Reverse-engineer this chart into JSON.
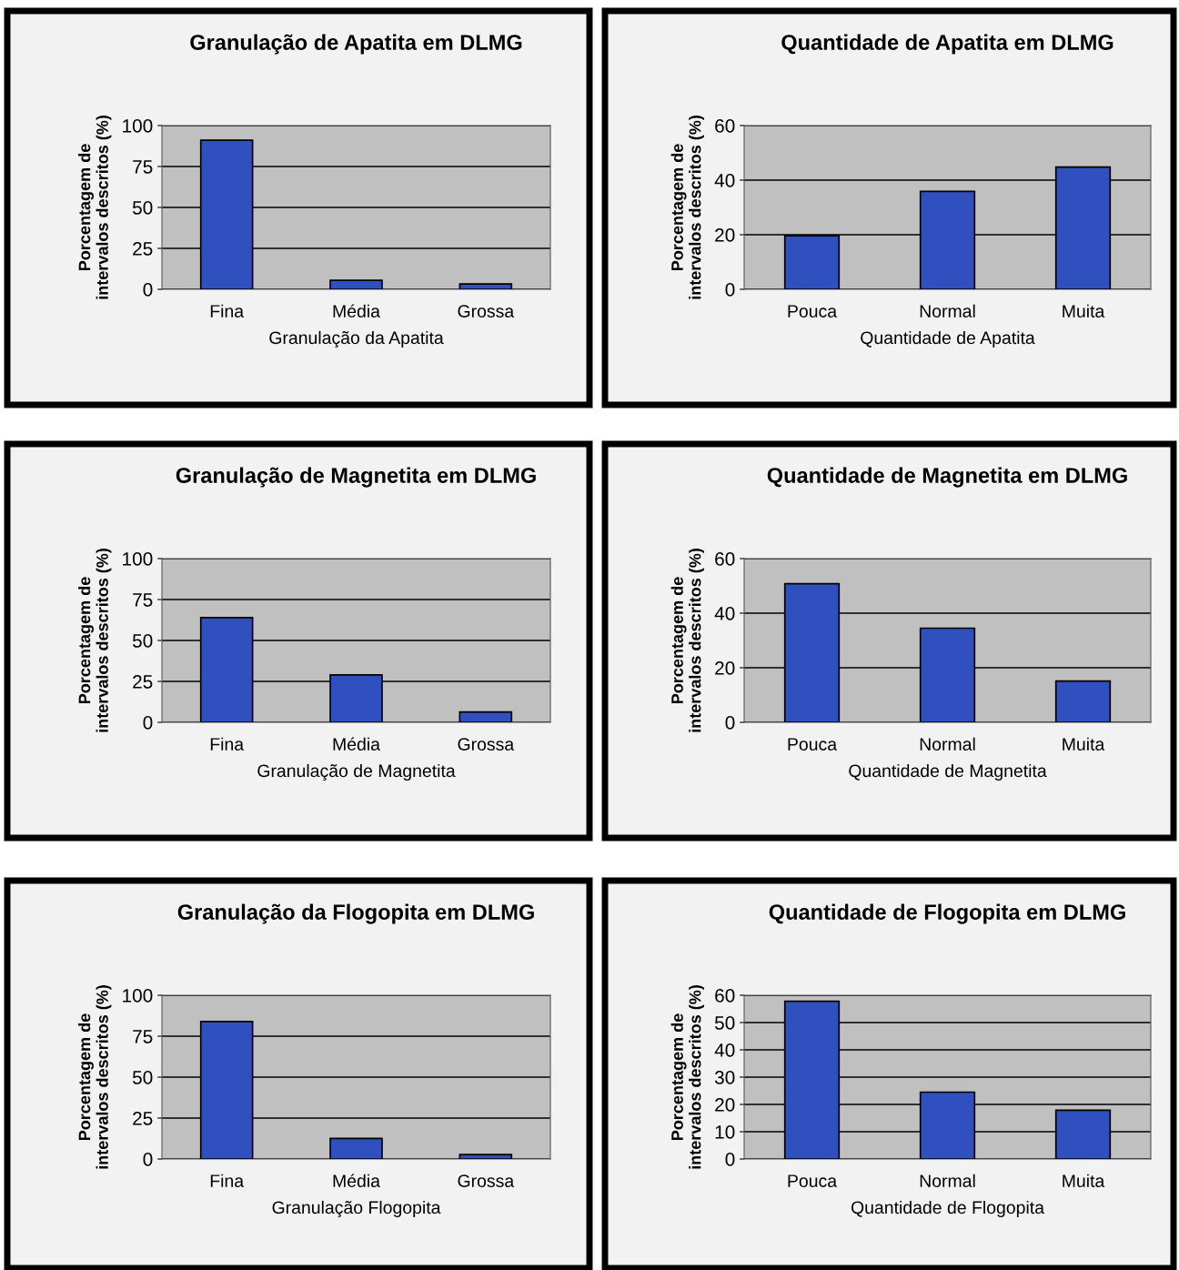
{
  "chart_data": [
    {
      "type": "bar",
      "title": "Granulação de Apatita em DLMG",
      "xlabel": "Granulação da Apatita",
      "ylabel": "Porcentagem de\nintervalos descritos (%)",
      "categories": [
        "Fina",
        "Média",
        "Grossa"
      ],
      "values": [
        91,
        5.5,
        3.3
      ],
      "color": "#3050c0",
      "ylim": [
        0,
        100
      ],
      "yticks": [
        0,
        25,
        50,
        75,
        100
      ],
      "grid": "y"
    },
    {
      "type": "bar",
      "title": "Quantidade de Apatita em DLMG",
      "xlabel": "Quantidade de Apatita",
      "ylabel": "Porcentagem de\nintervalos descritos (%)",
      "categories": [
        "Pouca",
        "Normal",
        "Muita"
      ],
      "values": [
        19.6,
        35.9,
        44.8
      ],
      "color": "#3050c0",
      "ylim": [
        0,
        60
      ],
      "yticks": [
        0,
        20,
        40,
        60
      ],
      "grid": "y"
    },
    {
      "type": "bar",
      "title": "Granulação de Magnetita em DLMG",
      "xlabel": "Granulação de Magnetita",
      "ylabel": "Porcentagem de\nintervalos descritos (%)",
      "categories": [
        "Fina",
        "Média",
        "Grossa"
      ],
      "values": [
        64,
        29,
        6.3
      ],
      "color": "#3050c0",
      "ylim": [
        0,
        100
      ],
      "yticks": [
        0,
        25,
        50,
        75,
        100
      ],
      "grid": "y"
    },
    {
      "type": "bar",
      "title": "Quantidade de Magnetita em DLMG",
      "xlabel": "Quantidade de Magnetita",
      "ylabel": "Porcentagem de\nintervalos descritos (%)",
      "categories": [
        "Pouca",
        "Normal",
        "Muita"
      ],
      "values": [
        50.8,
        34.5,
        15.1
      ],
      "color": "#3050c0",
      "ylim": [
        0,
        60
      ],
      "yticks": [
        0,
        20,
        40,
        60
      ],
      "grid": "y"
    },
    {
      "type": "bar",
      "title": "Granulação da Flogopita em DLMG",
      "xlabel": "Granulação Flogopita",
      "ylabel": "Porcentagem de\nintervalos descritos (%)",
      "categories": [
        "Fina",
        "Média",
        "Grossa"
      ],
      "values": [
        84,
        12.6,
        2.7
      ],
      "color": "#3050c0",
      "ylim": [
        0,
        100
      ],
      "yticks": [
        0,
        25,
        50,
        75,
        100
      ],
      "grid": "y"
    },
    {
      "type": "bar",
      "title": "Quantidade de Flogopita em DLMG",
      "xlabel": "Quantidade de Flogopita",
      "ylabel": "Porcentagem de\nintervalos descritos (%)",
      "categories": [
        "Pouca",
        "Normal",
        "Muita"
      ],
      "values": [
        57.8,
        24.5,
        17.9
      ],
      "color": "#3050c0",
      "ylim": [
        0,
        60
      ],
      "yticks": [
        0,
        10,
        20,
        30,
        40,
        50,
        60
      ],
      "grid": "y"
    }
  ]
}
